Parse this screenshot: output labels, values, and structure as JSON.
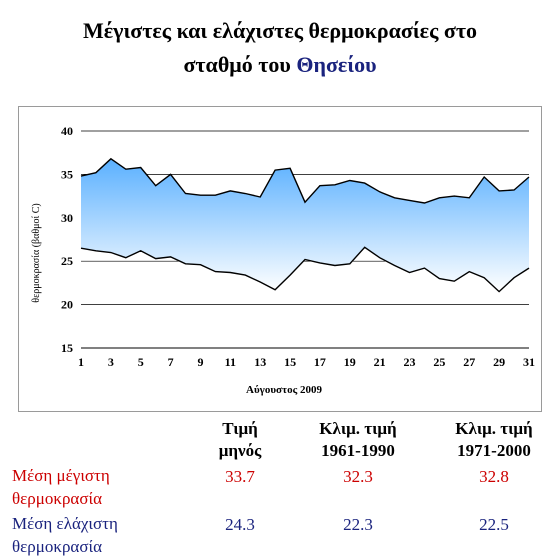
{
  "title": {
    "line1": "Μέγιστες και ελάχιστες θερμοκρασίες στο",
    "line2_prefix": "σταθμό του ",
    "line2_highlight": "Θησείου"
  },
  "chart_data": {
    "type": "area",
    "xlabel": "Αύγουστος 2009",
    "ylabel": "θερμοκρασία (βαθμοί C)",
    "ylim": [
      15,
      40
    ],
    "yticks": [
      15,
      20,
      25,
      30,
      35,
      40
    ],
    "x": [
      1,
      2,
      3,
      4,
      5,
      6,
      7,
      8,
      9,
      10,
      11,
      12,
      13,
      14,
      15,
      16,
      17,
      18,
      19,
      20,
      21,
      22,
      23,
      24,
      25,
      26,
      27,
      28,
      29,
      30,
      31
    ],
    "xticks": [
      1,
      3,
      5,
      7,
      9,
      11,
      13,
      15,
      17,
      19,
      21,
      23,
      25,
      27,
      29,
      31
    ],
    "grid": "horizontal",
    "series": [
      {
        "values": [
          34.8,
          35.2,
          36.8,
          35.6,
          35.8,
          33.7,
          35.0,
          32.8,
          32.6,
          32.6,
          33.1,
          32.8,
          32.4,
          35.5,
          35.7,
          31.8,
          33.7,
          33.8,
          34.3,
          34.0,
          33.0,
          32.3,
          32.0,
          31.7,
          32.3,
          32.5,
          32.3,
          34.7,
          33.1,
          33.2,
          34.7
        ]
      },
      {
        "values": [
          26.5,
          26.2,
          26.0,
          25.4,
          26.2,
          25.3,
          25.5,
          24.7,
          24.6,
          23.8,
          23.7,
          23.4,
          22.6,
          21.7,
          23.4,
          25.2,
          24.8,
          24.5,
          24.7,
          26.6,
          25.4,
          24.5,
          23.7,
          24.2,
          23.0,
          22.7,
          23.8,
          23.1,
          21.5,
          23.1,
          24.2
        ]
      }
    ]
  },
  "table": {
    "headers": [
      {
        "line1": "Τιμή",
        "line2": "μηνός"
      },
      {
        "line1": "Κλιμ. τιμή",
        "line2": "1961-1990"
      },
      {
        "line1": "Κλιμ. τιμή",
        "line2": "1971-2000"
      }
    ],
    "rows": [
      {
        "label_line1": "Μέση μέγιστη",
        "label_line2": "θερμοκρασία",
        "values": [
          "33.7",
          "32.3",
          "32.8"
        ],
        "color": "#cc0000"
      },
      {
        "label_line1": "Μέση ελάχιστη",
        "label_line2": "θερμοκρασία",
        "values": [
          "24.3",
          "22.3",
          "22.5"
        ],
        "color": "#1a237e"
      }
    ]
  },
  "colors": {
    "band_top": "#5ab0ff",
    "band_bottom": "#ffffff",
    "line": "#000000",
    "grid": "#000000"
  }
}
